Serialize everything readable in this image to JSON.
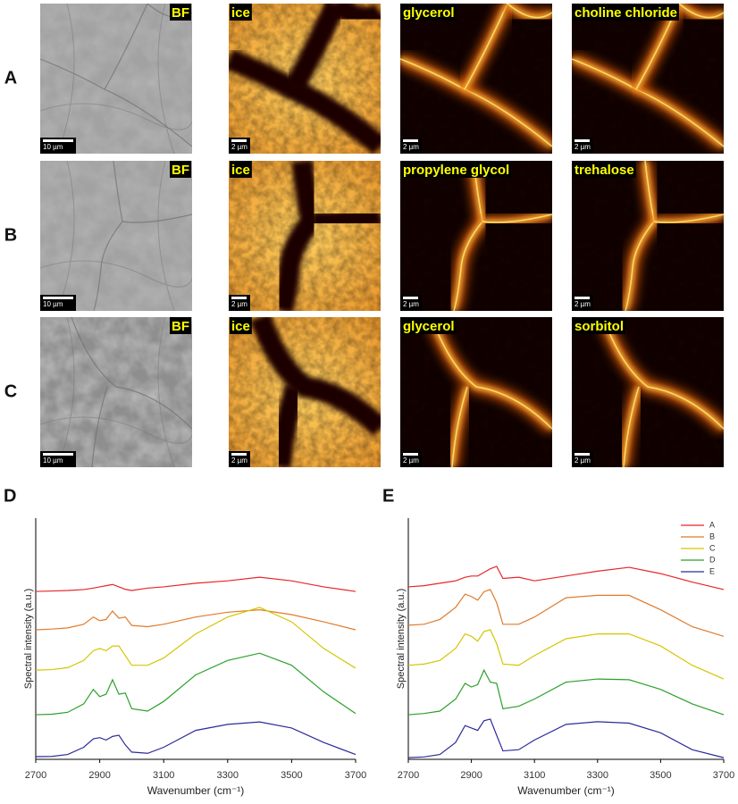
{
  "panels": {
    "rows": [
      {
        "label": "A",
        "cells": [
          {
            "label": "BF",
            "scale_bar": "10 µm"
          },
          {
            "label": "ice",
            "scale_bar": "2 µm"
          },
          {
            "label": "glycerol",
            "scale_bar": "2 µm"
          },
          {
            "label": "choline chloride",
            "scale_bar": "2 µm"
          }
        ]
      },
      {
        "label": "B",
        "cells": [
          {
            "label": "BF",
            "scale_bar": "10 µm"
          },
          {
            "label": "ice",
            "scale_bar": "2 µm"
          },
          {
            "label": "propylene glycol",
            "scale_bar": "2 µm"
          },
          {
            "label": "trehalose",
            "scale_bar": "2 µm"
          }
        ]
      },
      {
        "label": "C",
        "cells": [
          {
            "label": "BF",
            "scale_bar": "10 µm"
          },
          {
            "label": "ice",
            "scale_bar": "2 µm"
          },
          {
            "label": "glycerol",
            "scale_bar": "2 µm"
          },
          {
            "label": "sorbitol",
            "scale_bar": "2 µm"
          }
        ]
      }
    ]
  },
  "chart_data": [
    {
      "type": "line",
      "label": "D",
      "xlabel": "Wavenumber (cm⁻¹)",
      "ylabel": "Spectral intensity (a.u.)",
      "x": [
        2700,
        2750,
        2800,
        2850,
        2880,
        2900,
        2920,
        2940,
        2960,
        2980,
        3000,
        3050,
        3100,
        3200,
        3300,
        3400,
        3500,
        3600,
        3700
      ],
      "xlim": [
        2700,
        3700
      ],
      "ylim": [
        0,
        10
      ],
      "xticks": [
        2700,
        2900,
        3100,
        3300,
        3500,
        3700
      ],
      "series": [
        {
          "color": "#e8262a",
          "values": [
            6.96,
            6.98,
            7.0,
            7.04,
            7.1,
            7.15,
            7.2,
            7.25,
            7.15,
            7.05,
            7.0,
            7.1,
            7.15,
            7.3,
            7.4,
            7.55,
            7.4,
            7.15,
            6.96
          ]
        },
        {
          "color": "#e07b2c",
          "values": [
            5.37,
            5.4,
            5.45,
            5.6,
            5.9,
            5.75,
            5.8,
            6.15,
            5.85,
            5.9,
            5.55,
            5.5,
            5.6,
            5.9,
            6.1,
            6.2,
            6.0,
            5.7,
            5.37
          ]
        },
        {
          "color": "#d4c600",
          "values": [
            3.7,
            3.72,
            3.8,
            4.1,
            4.5,
            4.6,
            4.5,
            4.7,
            4.7,
            4.3,
            3.9,
            3.9,
            4.2,
            5.2,
            5.9,
            6.3,
            5.7,
            4.6,
            3.78
          ]
        },
        {
          "color": "#2ca02c",
          "values": [
            1.85,
            1.87,
            1.95,
            2.3,
            2.9,
            2.6,
            2.7,
            3.3,
            2.7,
            2.75,
            2.1,
            2.0,
            2.4,
            3.5,
            4.1,
            4.4,
            3.9,
            2.8,
            1.9
          ]
        },
        {
          "color": "#2b2b9a",
          "values": [
            0.11,
            0.12,
            0.2,
            0.5,
            0.85,
            0.9,
            0.8,
            0.95,
            1.0,
            0.6,
            0.3,
            0.25,
            0.5,
            1.2,
            1.45,
            1.55,
            1.3,
            0.7,
            0.2
          ]
        }
      ]
    },
    {
      "type": "line",
      "label": "E",
      "xlabel": "Wavenumber (cm⁻¹)",
      "ylabel": "Spectral intensity (a.u.)",
      "x": [
        2700,
        2750,
        2800,
        2850,
        2880,
        2900,
        2920,
        2940,
        2960,
        2980,
        3000,
        3050,
        3100,
        3200,
        3300,
        3400,
        3500,
        3600,
        3700
      ],
      "xlim": [
        2700,
        3700
      ],
      "ylim": [
        0,
        10
      ],
      "xticks": [
        2700,
        2900,
        3100,
        3300,
        3500,
        3700
      ],
      "legend": "upper right",
      "series": [
        {
          "name": "A",
          "color": "#e8262a",
          "values": [
            7.15,
            7.2,
            7.3,
            7.4,
            7.55,
            7.6,
            7.6,
            7.75,
            7.9,
            8.0,
            7.5,
            7.55,
            7.4,
            7.6,
            7.8,
            7.96,
            7.7,
            7.35,
            7.04
          ]
        },
        {
          "name": "B",
          "color": "#e07b2c",
          "values": [
            5.56,
            5.6,
            5.8,
            6.3,
            6.85,
            6.75,
            6.6,
            6.95,
            7.04,
            6.5,
            5.6,
            5.6,
            5.9,
            6.7,
            6.8,
            6.8,
            6.2,
            5.5,
            5.1
          ]
        },
        {
          "name": "C",
          "color": "#d4c600",
          "values": [
            3.9,
            3.95,
            4.1,
            4.6,
            5.2,
            5.1,
            4.9,
            5.3,
            5.37,
            4.8,
            3.95,
            3.9,
            4.3,
            5.0,
            5.2,
            5.2,
            4.7,
            3.9,
            3.33
          ]
        },
        {
          "name": "D",
          "color": "#2ca02c",
          "values": [
            1.85,
            1.9,
            2.0,
            2.5,
            3.15,
            3.0,
            3.1,
            3.7,
            3.2,
            3.15,
            2.1,
            2.2,
            2.5,
            3.2,
            3.33,
            3.3,
            2.9,
            2.3,
            1.85
          ]
        },
        {
          "name": "E",
          "color": "#2b2b9a",
          "values": [
            0.07,
            0.1,
            0.2,
            0.7,
            1.4,
            1.3,
            1.2,
            1.6,
            1.67,
            1.0,
            0.35,
            0.4,
            0.8,
            1.45,
            1.56,
            1.5,
            1.1,
            0.4,
            0.07
          ]
        }
      ]
    }
  ]
}
